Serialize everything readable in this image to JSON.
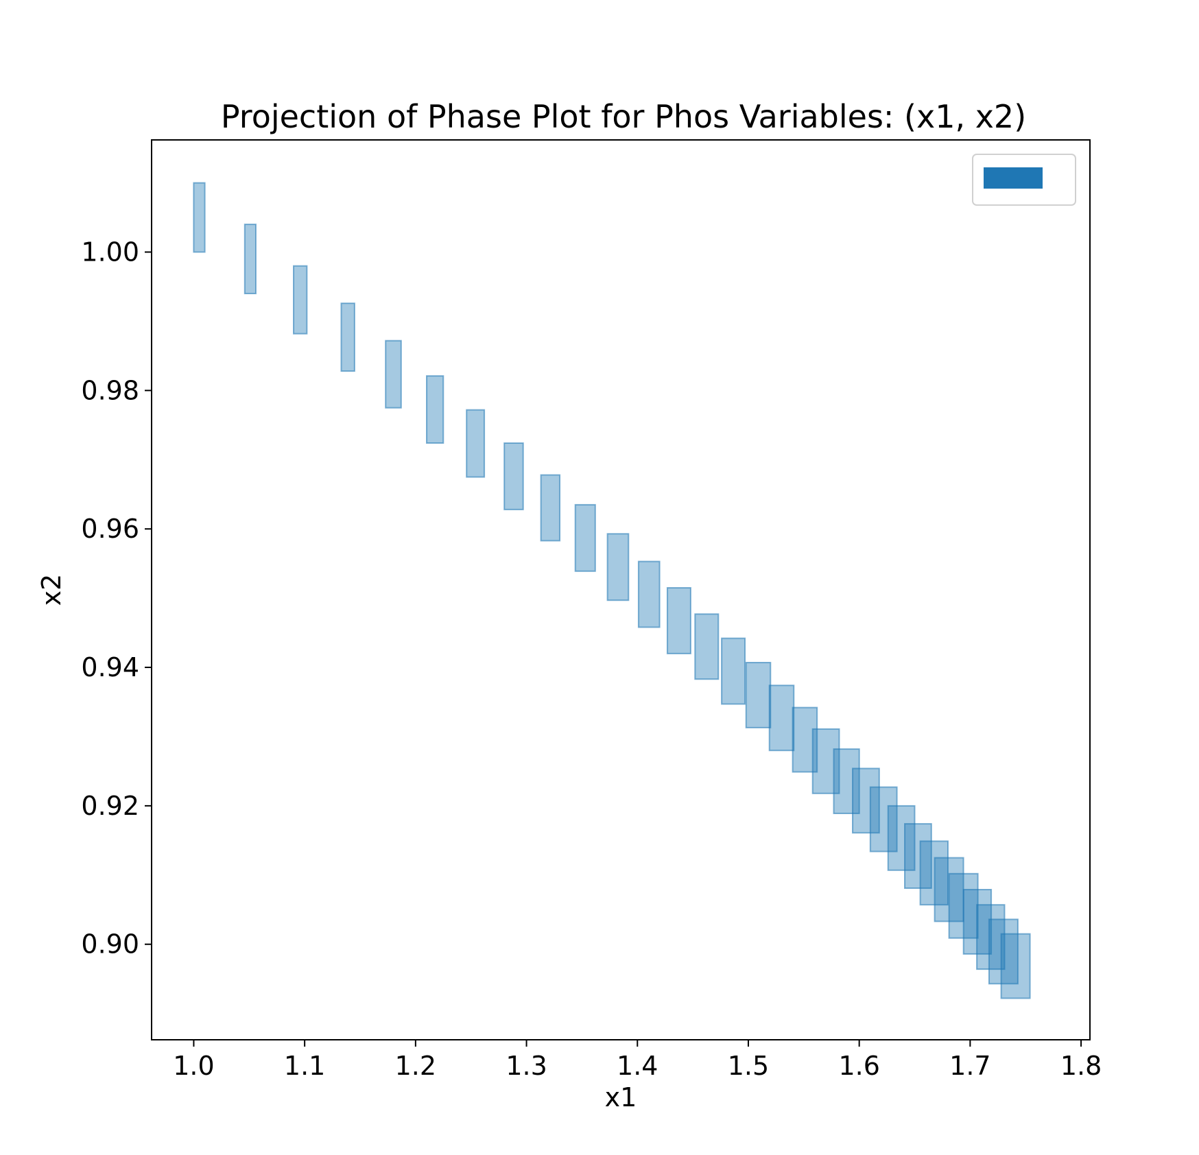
{
  "chart_data": {
    "type": "box-reachset",
    "title": "Projection of Phase Plot for Phos Variables: (x1, x2)",
    "xlabel": "x1",
    "ylabel": "x2",
    "xlim": [
      0.962,
      1.808
    ],
    "ylim": [
      0.8862,
      1.0162
    ],
    "xticks": [
      1.0,
      1.1,
      1.2,
      1.3,
      1.4,
      1.5,
      1.6,
      1.7,
      1.8
    ],
    "xtick_labels": [
      "1.0",
      "1.1",
      "1.2",
      "1.3",
      "1.4",
      "1.5",
      "1.6",
      "1.7",
      "1.8"
    ],
    "yticks": [
      0.9,
      0.92,
      0.94,
      0.96,
      0.98,
      1.0
    ],
    "ytick_labels": [
      "0.90",
      "0.92",
      "0.94",
      "0.96",
      "0.98",
      "1.00"
    ],
    "grid": false,
    "legend": {
      "placement": "top-right",
      "entries": [
        ""
      ]
    },
    "colors": {
      "fill": "#1f77b4",
      "edge": "#1f77b4",
      "fill_alpha": 0.4
    },
    "series": [
      {
        "name": "",
        "boxes": [
          {
            "x": [
              1.0,
              1.01
            ],
            "y": [
              1.0,
              1.01
            ]
          },
          {
            "x": [
              1.046,
              1.056
            ],
            "y": [
              0.994,
              1.004
            ]
          },
          {
            "x": [
              1.09,
              1.102
            ],
            "y": [
              0.9882,
              0.998
            ]
          },
          {
            "x": [
              1.133,
              1.145
            ],
            "y": [
              0.9828,
              0.9926
            ]
          },
          {
            "x": [
              1.173,
              1.187
            ],
            "y": [
              0.9775,
              0.9872
            ]
          },
          {
            "x": [
              1.21,
              1.225
            ],
            "y": [
              0.9724,
              0.9821
            ]
          },
          {
            "x": [
              1.246,
              1.262
            ],
            "y": [
              0.9675,
              0.9772
            ]
          },
          {
            "x": [
              1.28,
              1.297
            ],
            "y": [
              0.9628,
              0.9724
            ]
          },
          {
            "x": [
              1.313,
              1.33
            ],
            "y": [
              0.9583,
              0.9678
            ]
          },
          {
            "x": [
              1.344,
              1.362
            ],
            "y": [
              0.9539,
              0.9635
            ]
          },
          {
            "x": [
              1.373,
              1.392
            ],
            "y": [
              0.9497,
              0.9593
            ]
          },
          {
            "x": [
              1.401,
              1.42
            ],
            "y": [
              0.9458,
              0.9553
            ]
          },
          {
            "x": [
              1.427,
              1.448
            ],
            "y": [
              0.942,
              0.9515
            ]
          },
          {
            "x": [
              1.452,
              1.473
            ],
            "y": [
              0.9383,
              0.9477
            ]
          },
          {
            "x": [
              1.476,
              1.497
            ],
            "y": [
              0.9347,
              0.9442
            ]
          },
          {
            "x": [
              1.498,
              1.52
            ],
            "y": [
              0.9313,
              0.9407
            ]
          },
          {
            "x": [
              1.519,
              1.541
            ],
            "y": [
              0.928,
              0.9374
            ]
          },
          {
            "x": [
              1.54,
              1.562
            ],
            "y": [
              0.9249,
              0.9342
            ]
          },
          {
            "x": [
              1.558,
              1.582
            ],
            "y": [
              0.9218,
              0.9311
            ]
          },
          {
            "x": [
              1.577,
              1.6
            ],
            "y": [
              0.9189,
              0.9282
            ]
          },
          {
            "x": [
              1.594,
              1.618
            ],
            "y": [
              0.9161,
              0.9254
            ]
          },
          {
            "x": [
              1.61,
              1.634
            ],
            "y": [
              0.9134,
              0.9227
            ]
          },
          {
            "x": [
              1.626,
              1.65
            ],
            "y": [
              0.9107,
              0.92
            ]
          },
          {
            "x": [
              1.641,
              1.665
            ],
            "y": [
              0.9081,
              0.9174
            ]
          },
          {
            "x": [
              1.655,
              1.68
            ],
            "y": [
              0.9057,
              0.9149
            ]
          },
          {
            "x": [
              1.668,
              1.694
            ],
            "y": [
              0.9033,
              0.9125
            ]
          },
          {
            "x": [
              1.681,
              1.707
            ],
            "y": [
              0.9009,
              0.9102
            ]
          },
          {
            "x": [
              1.694,
              1.719
            ],
            "y": [
              0.8986,
              0.9079
            ]
          },
          {
            "x": [
              1.706,
              1.731
            ],
            "y": [
              0.8964,
              0.9057
            ]
          },
          {
            "x": [
              1.717,
              1.743
            ],
            "y": [
              0.8943,
              0.9036
            ]
          },
          {
            "x": [
              1.728,
              1.754
            ],
            "y": [
              0.8922,
              0.9015
            ]
          }
        ]
      }
    ]
  }
}
